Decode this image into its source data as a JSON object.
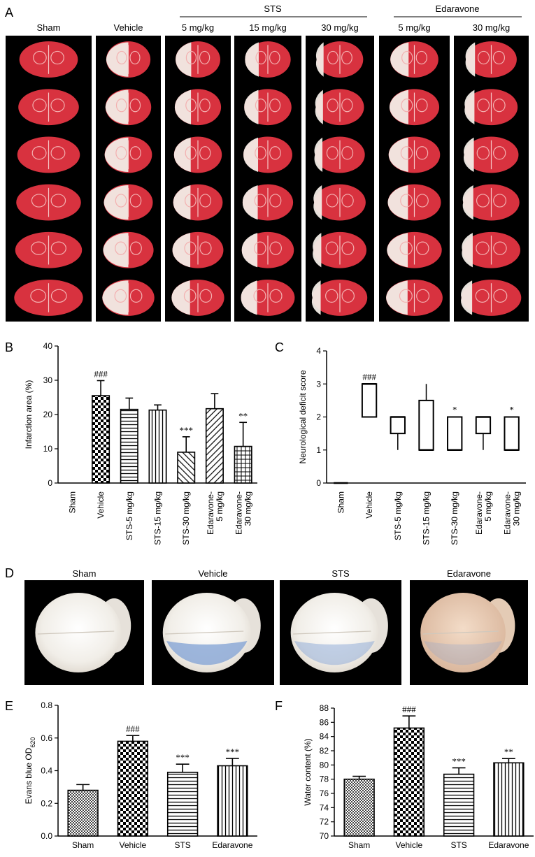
{
  "panel_letters": [
    "A",
    "B",
    "C",
    "D",
    "E",
    "F"
  ],
  "panelA": {
    "group_headers": [
      "STS",
      "Edaravone"
    ],
    "columns": [
      "Sham",
      "Vehicle",
      "5 mg/kg",
      "15 mg/kg",
      "30 mg/kg",
      "5 mg/kg",
      "30 mg/kg"
    ],
    "slices_per_column": 6
  },
  "panelD": {
    "labels": [
      "Sham",
      "Vehicle",
      "STS",
      "Edaravone"
    ]
  },
  "colors": {
    "slice_red": "#d8323f",
    "infarct_white": "#f2ece6",
    "photo_bg": "#000000",
    "evans_blue": "#7fa0d4"
  },
  "chart_data": [
    {
      "id": "B",
      "type": "bar",
      "ylabel": "Infarction area (%)",
      "ylim": [
        0,
        40
      ],
      "yticks": [
        0,
        10,
        20,
        30,
        40
      ],
      "categories": [
        "Sham",
        "Vehicle",
        "STS-5 mg/kg",
        "STS-15 mg/kg",
        "STS-30 mg/kg",
        "Edaravone-\n5 mg/kg",
        "Edaravone-\n30 mg/kg"
      ],
      "values": [
        0,
        25.5,
        21.5,
        21.3,
        9,
        21.7,
        10.7
      ],
      "errors": [
        0,
        4.4,
        3.3,
        1.5,
        4.5,
        4.4,
        7
      ],
      "patterns": [
        "none",
        "checker",
        "hlines",
        "vlines",
        "diag",
        "diagrev",
        "grid"
      ],
      "annotations": [
        "",
        "###",
        "",
        "",
        "***",
        "",
        "**"
      ]
    },
    {
      "id": "C",
      "type": "box",
      "ylabel": "Neurological deficit score",
      "ylim": [
        0,
        4
      ],
      "yticks": [
        0,
        1,
        2,
        3,
        4
      ],
      "categories": [
        "Sham",
        "Vehicle",
        "STS-5 mg/kg",
        "STS-15 mg/kg",
        "STS-30 mg/kg",
        "Edaravone-\n5 mg/kg",
        "Edaravone-\n30 mg/kg"
      ],
      "boxes": [
        {
          "min": 0,
          "q1": 0,
          "median": 0,
          "q3": 0,
          "max": 0
        },
        {
          "min": 2,
          "q1": 2,
          "median": 3,
          "q3": 3,
          "max": 3
        },
        {
          "min": 1,
          "q1": 1.5,
          "median": 2,
          "q3": 2,
          "max": 2
        },
        {
          "min": 1,
          "q1": 1,
          "median": 1,
          "q3": 2.5,
          "max": 3
        },
        {
          "min": 1,
          "q1": 1,
          "median": 1,
          "q3": 2,
          "max": 2
        },
        {
          "min": 1,
          "q1": 1.5,
          "median": 2,
          "q3": 2,
          "max": 2
        },
        {
          "min": 1,
          "q1": 1,
          "median": 1,
          "q3": 2,
          "max": 2
        }
      ],
      "annotations": [
        "",
        "###",
        "",
        "",
        "*",
        "",
        "*"
      ]
    },
    {
      "id": "E",
      "type": "bar",
      "ylabel": "Evans blue OD620",
      "ylim": [
        0,
        0.8
      ],
      "yticks": [
        "0.0",
        "0.2",
        "0.4",
        "0.6",
        "0.8"
      ],
      "categories": [
        "Sham",
        "Vehicle",
        "STS",
        "Edaravone"
      ],
      "values": [
        0.28,
        0.58,
        0.39,
        0.43
      ],
      "errors": [
        0.035,
        0.035,
        0.05,
        0.045
      ],
      "patterns": [
        "smallcheck",
        "checker",
        "hlines",
        "vlines"
      ],
      "annotations": [
        "",
        "###",
        "***",
        "***"
      ]
    },
    {
      "id": "F",
      "type": "bar",
      "ylabel": "Water content (%)",
      "ylim": [
        70,
        88
      ],
      "yticks": [
        70,
        72,
        74,
        76,
        78,
        80,
        82,
        84,
        86,
        88
      ],
      "categories": [
        "Sham",
        "Vehicle",
        "STS",
        "Edaravone"
      ],
      "values": [
        78,
        85.2,
        78.7,
        80.3
      ],
      "errors": [
        0.4,
        1.7,
        0.9,
        0.6
      ],
      "patterns": [
        "smallcheck",
        "checker",
        "hlines",
        "vlines"
      ],
      "annotations": [
        "",
        "###",
        "***",
        "**"
      ]
    }
  ]
}
